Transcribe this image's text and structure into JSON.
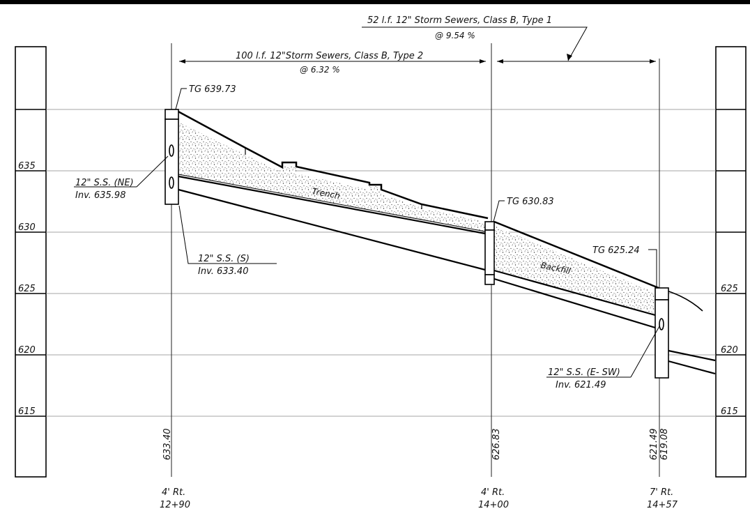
{
  "profile": {
    "dimension_lines": [
      {
        "id": "run-52",
        "label": "52 l.f.  12\"  Storm Sewers, Class B, Type 1",
        "slope": "@ 9.54 %"
      },
      {
        "id": "run-100",
        "label": "100 l.f. 12\"Storm Sewers, Class B, Type 2",
        "slope": "@ 6.32 %"
      }
    ],
    "elevations": [
      "635",
      "630",
      "625",
      "620",
      "615"
    ],
    "callouts": [
      {
        "id": "tg-1",
        "text": "TG 639.73"
      },
      {
        "id": "ss-ne",
        "text": "12\" S.S. (NE)",
        "sub": "Inv. 635.98"
      },
      {
        "id": "ss-s",
        "text": "12\" S.S. (S)",
        "sub": "Inv. 633.40"
      },
      {
        "id": "tg-2",
        "text": "TG 630.83"
      },
      {
        "id": "tg-3",
        "text": "TG 625.24"
      },
      {
        "id": "ss-esw",
        "text": "12\" S.S. (E- SW)",
        "sub": "Inv. 621.49"
      }
    ],
    "fill_labels": {
      "trench": "Trench",
      "backfill": "Backfill"
    },
    "stations": [
      {
        "id": "sta-1",
        "inverts": [
          "633.40"
        ],
        "offset": "4' Rt.",
        "station": "12+90"
      },
      {
        "id": "sta-2",
        "inverts": [
          "626.83"
        ],
        "offset": "4' Rt.",
        "station": "14+00"
      },
      {
        "id": "sta-3",
        "inverts": [
          "621.49",
          "619.08"
        ],
        "offset": "7' Rt.",
        "station": "14+57"
      }
    ]
  }
}
